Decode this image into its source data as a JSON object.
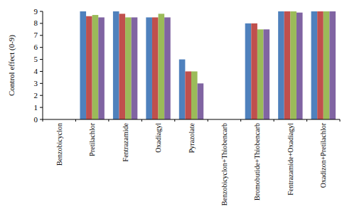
{
  "chart_data": {
    "type": "bar",
    "y_label": "Control effect (0-9)",
    "categories": [
      "Benzobicyclon",
      "Pretilachlor",
      "Fentrazamide",
      "Oxadiagyl",
      "Pyrazolate",
      "Benzobicyclon+Thiobencarb",
      "Bromobutide+Thiobencarb",
      "Fentrazamide+Oxadiagyl",
      "Oxadizon+Pretilachlor"
    ],
    "series": [
      {
        "color": "#4f81bd",
        "values": [
          0,
          9,
          9,
          8.5,
          5,
          0,
          8,
          9,
          9
        ]
      },
      {
        "color": "#c0504d",
        "values": [
          0,
          8.6,
          8.8,
          8.5,
          4,
          0,
          8,
          9,
          9
        ]
      },
      {
        "color": "#9bbb59",
        "values": [
          0,
          8.7,
          8.5,
          8.8,
          4,
          0,
          7.5,
          9,
          9
        ]
      },
      {
        "color": "#8064a2",
        "values": [
          0,
          8.5,
          8.5,
          8.5,
          3,
          0,
          7.5,
          8.9,
          9
        ]
      }
    ],
    "ylim": [
      0,
      9
    ],
    "yticks": [
      0,
      1,
      2,
      3,
      4,
      5,
      6,
      7,
      8,
      9
    ],
    "grid": false
  }
}
